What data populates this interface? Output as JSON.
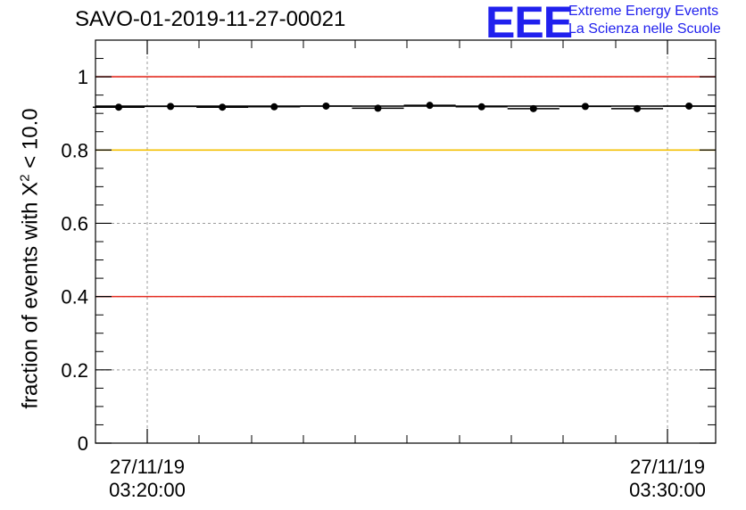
{
  "title": "SAVO-01-2019-11-27-00021",
  "logo": {
    "mark": "EEE",
    "line1": "Extreme Energy Events",
    "line2": "La Scienza nelle Scuole"
  },
  "y_axis_label": {
    "prefix": "fraction of events with X",
    "superscript": "2",
    "suffix": " < 10.0"
  },
  "colors": {
    "red": "#e32b20",
    "yellow": "#f3c000",
    "grid": "#9b9b9b",
    "axis": "#000000",
    "logo": "#2020ee"
  },
  "chart_data": {
    "type": "scatter",
    "title": "SAVO-01-2019-11-27-00021",
    "xlabel": "",
    "ylabel": "fraction of events with X^2 < 10.0",
    "ylim": [
      0,
      1.1
    ],
    "x_tick_labels": [
      {
        "date": "27/11/19",
        "time": "03:20:00"
      },
      {
        "date": "27/11/19",
        "time": "03:30:00"
      }
    ],
    "y_ticks": [
      0,
      0.2,
      0.4,
      0.6,
      0.8,
      1
    ],
    "y_tick_labels": [
      "0",
      "0.2",
      "0.4",
      "0.6",
      "0.8",
      "1"
    ],
    "reference_lines": [
      {
        "y": 1.0,
        "color": "red"
      },
      {
        "y": 0.8,
        "color": "yellow"
      },
      {
        "y": 0.4,
        "color": "red"
      }
    ],
    "mean_line": 0.92,
    "series": [
      {
        "values": [
          0.917,
          0.919,
          0.917,
          0.918,
          0.92,
          0.914,
          0.922,
          0.918,
          0.913,
          0.919,
          0.913,
          0.92
        ]
      }
    ],
    "grid": true,
    "legend": "none"
  }
}
